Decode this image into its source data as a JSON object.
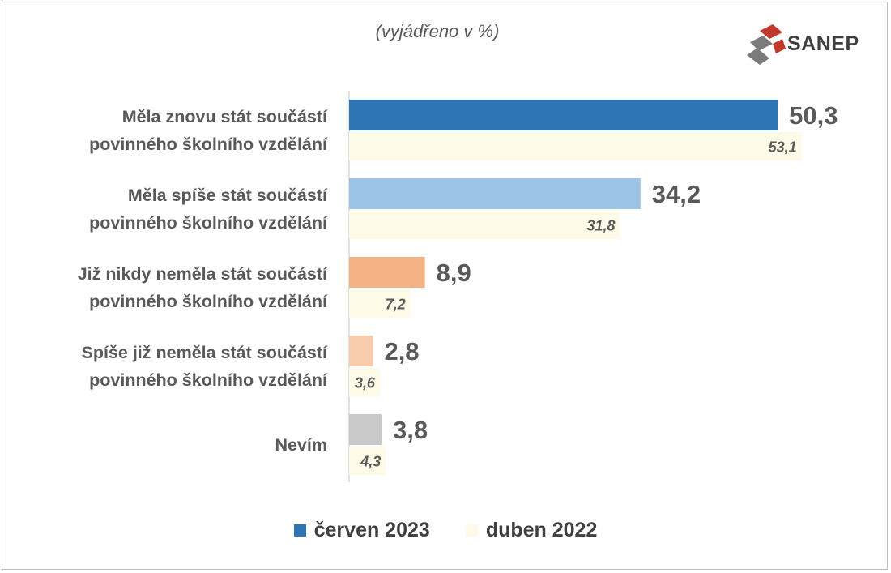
{
  "subtitle": "(vyjádřeno v %)",
  "logo": {
    "text": "SANEP",
    "mark_color": "#c0392b",
    "mark_color_dark": "#7b7b7b"
  },
  "chart_data": {
    "type": "bar",
    "orientation": "horizontal",
    "categories": [
      [
        "Měla znovu stát součástí",
        "povinného školního vzdělání"
      ],
      [
        "Měla spíše stát součástí",
        "povinného školního vzdělání"
      ],
      [
        "Již nikdy neměla stát součástí",
        "povinného školního vzdělání"
      ],
      [
        "Spíše již neměla stát součástí",
        "povinného školního vzdělání"
      ],
      [
        "Nevím"
      ]
    ],
    "series": [
      {
        "name": "červen 2023",
        "values": [
          50.3,
          34.2,
          8.9,
          2.8,
          3.8
        ],
        "value_labels": [
          "50,3",
          "34,2",
          "8,9",
          "2,8",
          "3,8"
        ],
        "colors": [
          "#2e75b6",
          "#9dc3e6",
          "#f4b183",
          "#f8cbad",
          "#c9c9c9"
        ]
      },
      {
        "name": "duben 2022",
        "values": [
          53.1,
          31.8,
          7.2,
          3.6,
          4.3
        ],
        "value_labels": [
          "53,1",
          "31,8",
          "7,2",
          "3,6",
          "4,3"
        ],
        "colors": [
          "#fdfbe8",
          "#fdfbe8",
          "#fdfbe8",
          "#fdfbe8",
          "#fdfbe8"
        ]
      }
    ],
    "legend": {
      "position": "bottom",
      "items": [
        {
          "label": "červen 2023",
          "color": "#2e75b6"
        },
        {
          "label": "duben 2022",
          "color": "#fdfbe8"
        }
      ]
    },
    "xlim": [
      0,
      55
    ],
    "grid": false
  }
}
